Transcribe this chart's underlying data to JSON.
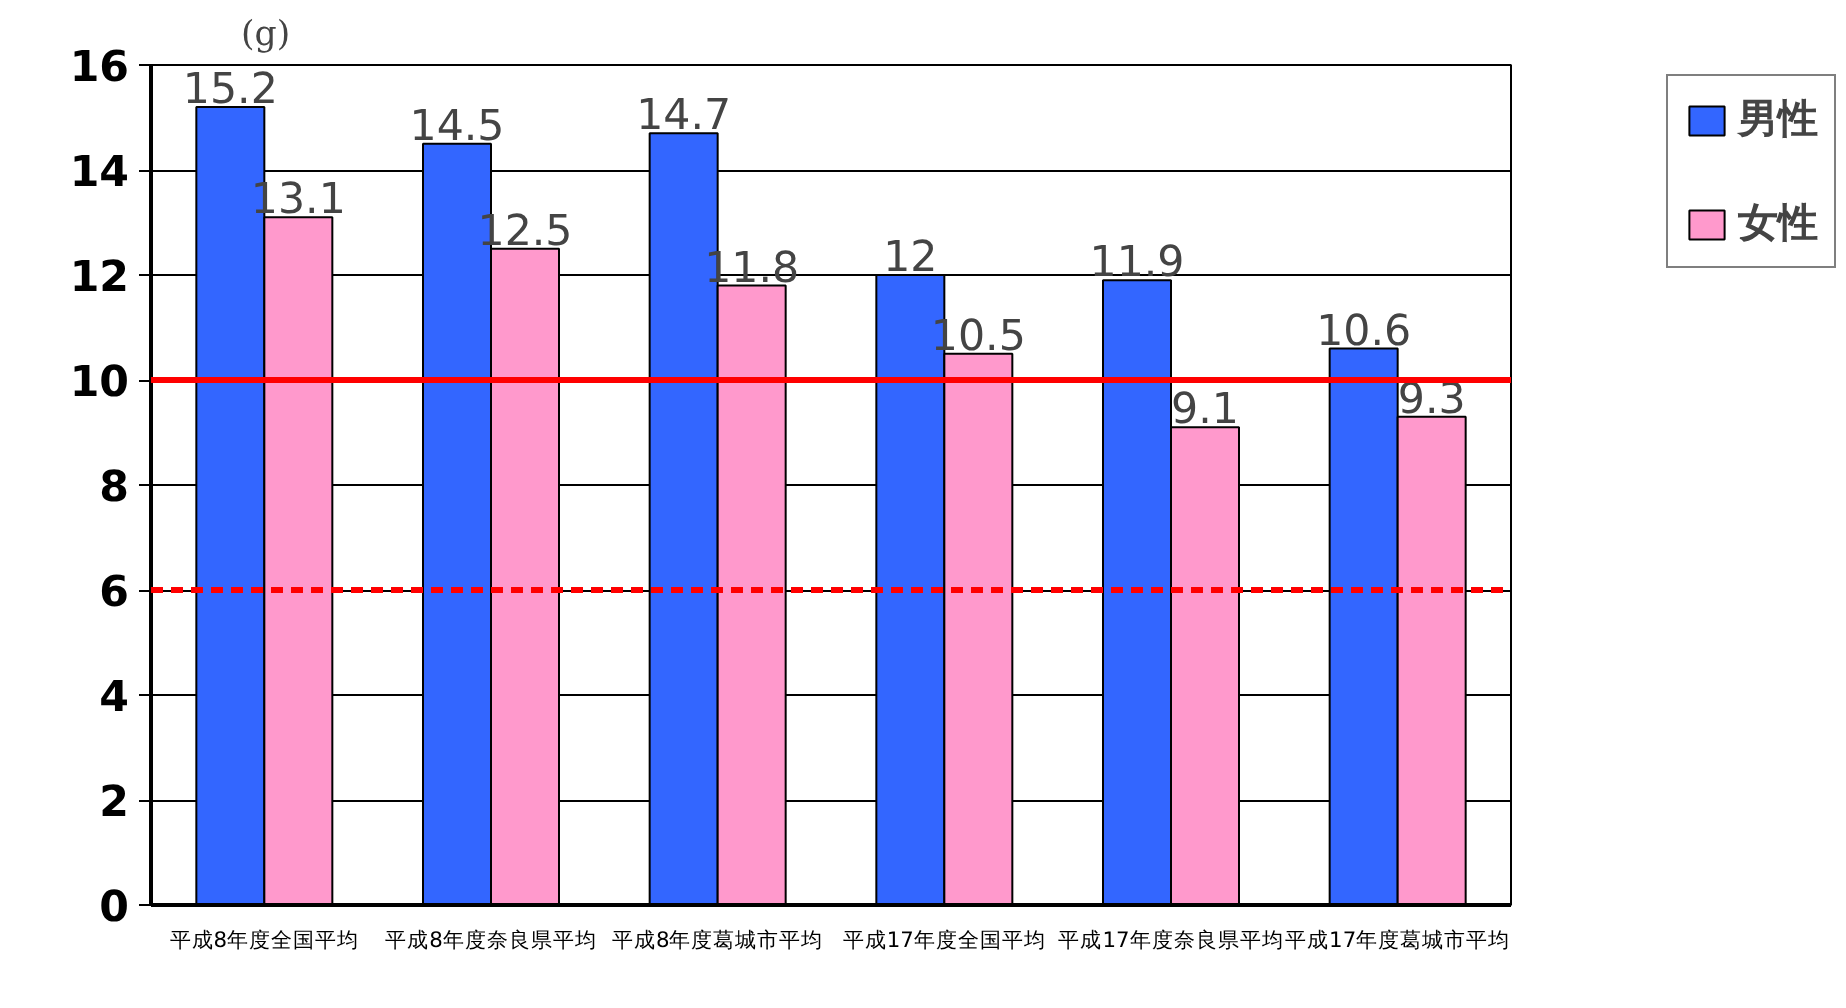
{
  "chart_data": {
    "type": "bar",
    "ylabel": "(g)",
    "categories": [
      "平成8年度全国平均",
      "平成8年度奈良県平均",
      "平成8年度葛城市平均",
      "平成17年度全国平均",
      "平成17年度奈良県平均",
      "平成17年度葛城市平均"
    ],
    "series": [
      {
        "name": "男性",
        "color": "#3366ff",
        "values": [
          15.2,
          14.5,
          14.7,
          12,
          11.9,
          10.6
        ]
      },
      {
        "name": "女性",
        "color": "#ff99cc",
        "values": [
          13.1,
          12.5,
          11.8,
          10.5,
          9.1,
          9.3
        ]
      }
    ],
    "ylim": [
      0,
      16
    ],
    "yticks": [
      0,
      2,
      4,
      6,
      8,
      10,
      12,
      14,
      16
    ],
    "grid": "y",
    "legend": "right",
    "data_labels": true,
    "ref_lines": [
      {
        "axis": "y",
        "value": 10,
        "color": "#ff0000",
        "line_style": "solid"
      },
      {
        "axis": "y",
        "value": 6,
        "color": "#ff0000",
        "line_style": "dashed"
      }
    ]
  }
}
